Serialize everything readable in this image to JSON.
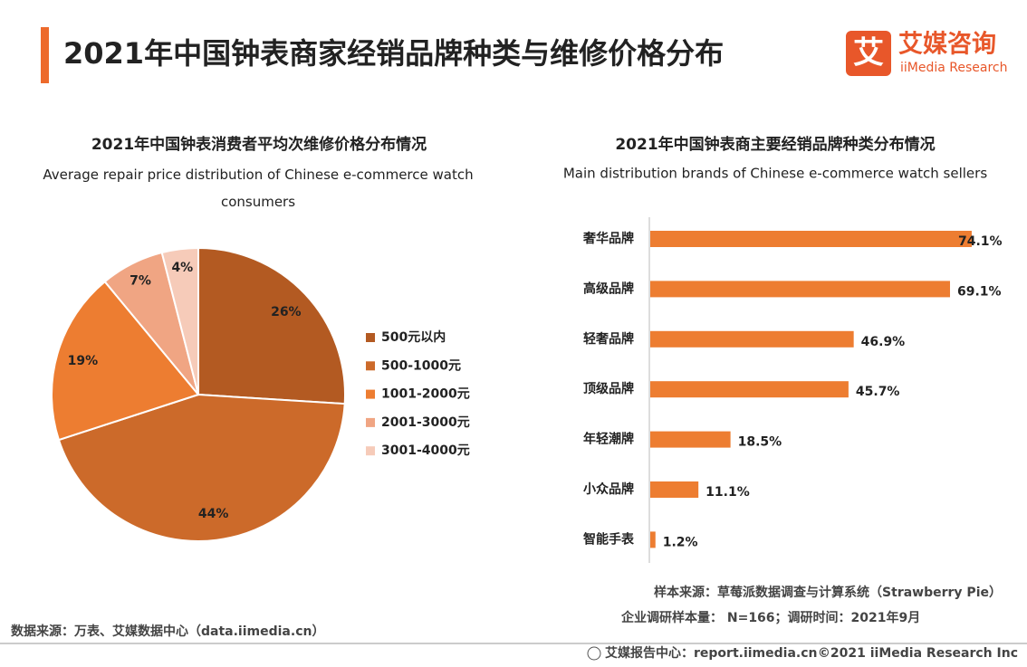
{
  "header": {
    "title": "2021年中国钟表商家经销品牌种类与维修价格分布",
    "logo_icon": "艾",
    "logo_cn": "艾媒咨询",
    "logo_en": "iiMedia Research"
  },
  "chart_data": [
    {
      "type": "pie",
      "title": "2021年中国钟表消费者平均次维修价格分布情况",
      "subtitle": "Average repair price distribution of Chinese e-commerce watch consumers",
      "categories": [
        "500元以内",
        "500-1000元",
        "1001-2000元",
        "2001-3000元",
        "3001-4000元"
      ],
      "values": [
        26,
        44,
        19,
        7,
        4
      ],
      "value_labels": [
        "26%",
        "44%",
        "19%",
        "7%",
        "4%"
      ],
      "colors": [
        "#b35a22",
        "#cc6a2a",
        "#ed7d31",
        "#f0a583",
        "#f6cbb9"
      ],
      "legend": "right"
    },
    {
      "type": "hbar",
      "title": "2021年中国钟表商主要经销品牌种类分布情况",
      "subtitle": "Main distribution brands of Chinese e-commerce watch sellers",
      "categories": [
        "奢华品牌",
        "高级品牌",
        "轻奢品牌",
        "顶级品牌",
        "年轻潮牌",
        "小众品牌",
        "智能手表"
      ],
      "values": [
        74.1,
        69.1,
        46.9,
        45.7,
        18.5,
        11.1,
        1.2
      ],
      "value_labels": [
        "74.1%",
        "69.1%",
        "46.9%",
        "45.7%",
        "18.5%",
        "11.1%",
        "1.2%"
      ],
      "color": "#ed7d31"
    }
  ],
  "footer": {
    "sample_source": "样本来源：草莓派数据调查与计算系统（Strawberry Pie）",
    "sample_info": "企业调研样本量： N=166；调研时间：2021年9月",
    "data_source": "数据来源：万表、艾媒数据中心（data.iimedia.cn）",
    "report_center": "艾媒报告中心：report.iimedia.cn",
    "copyright": "©2021  iiMedia Research  Inc"
  }
}
